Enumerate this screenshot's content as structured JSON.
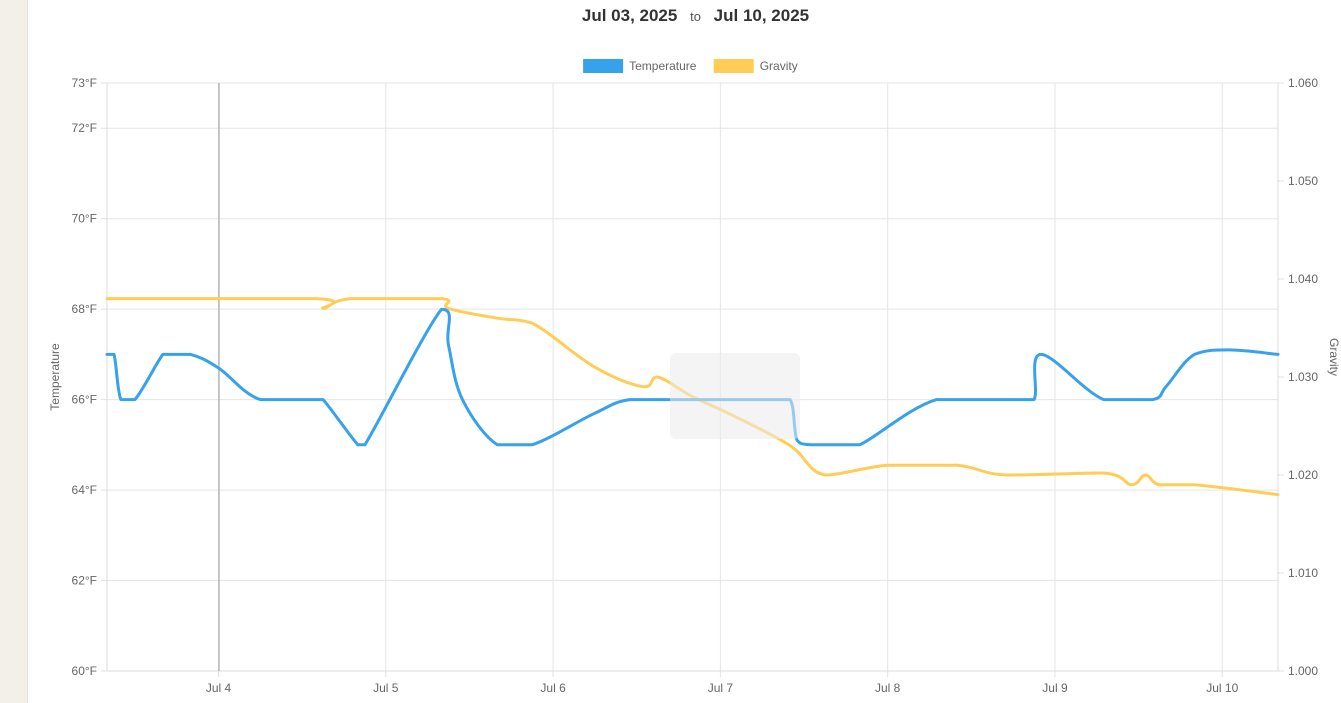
{
  "header": {
    "start_date": "Jul 03, 2025",
    "separator": "to",
    "end_date": "Jul 10, 2025"
  },
  "chart_data": {
    "type": "line",
    "legend": {
      "position": "top",
      "items": [
        {
          "name": "Temperature",
          "color": "#36a2eb"
        },
        {
          "name": "Gravity",
          "color": "#ffcd56"
        }
      ]
    },
    "grid": true,
    "x_axis": {
      "type": "date",
      "start": "2025-07-03 08:00",
      "end": "2025-07-10 08:00",
      "ticks": [
        "Jul 4",
        "Jul 5",
        "Jul 6",
        "Jul 7",
        "Jul 8",
        "Jul 9",
        "Jul 10"
      ]
    },
    "y_left": {
      "label": "Temperature",
      "unit": "°F",
      "range": [
        60,
        73
      ],
      "ticks": [
        "60°F",
        "62°F",
        "64°F",
        "66°F",
        "68°F",
        "70°F",
        "72°F",
        "73°F"
      ]
    },
    "y_right": {
      "label": "Gravity",
      "range": [
        1.0,
        1.06
      ],
      "ticks": [
        "1.000",
        "1.010",
        "1.020",
        "1.030",
        "1.040",
        "1.050",
        "1.060"
      ]
    },
    "series": [
      {
        "name": "Temperature",
        "axis": "left",
        "color": "#36a2eb",
        "points": [
          [
            "2025-07-03 08:00",
            67
          ],
          [
            "2025-07-03 09:00",
            67
          ],
          [
            "2025-07-03 10:00",
            66
          ],
          [
            "2025-07-03 12:00",
            66
          ],
          [
            "2025-07-03 16:00",
            67
          ],
          [
            "2025-07-03 17:00",
            67
          ],
          [
            "2025-07-03 20:00",
            67
          ],
          [
            "2025-07-04 00:00",
            66.7
          ],
          [
            "2025-07-04 06:00",
            66
          ],
          [
            "2025-07-04 14:00",
            66
          ],
          [
            "2025-07-04 15:00",
            66
          ],
          [
            "2025-07-04 20:00",
            65
          ],
          [
            "2025-07-04 21:00",
            65
          ],
          [
            "2025-07-05 08:00",
            68
          ],
          [
            "2025-07-05 09:00",
            67.2
          ],
          [
            "2025-07-05 11:00",
            66
          ],
          [
            "2025-07-05 16:00",
            65
          ],
          [
            "2025-07-05 21:00",
            65
          ],
          [
            "2025-07-06 06:00",
            65.7
          ],
          [
            "2025-07-06 11:00",
            66
          ],
          [
            "2025-07-06 19:00",
            66
          ],
          [
            "2025-07-07 07:00",
            66
          ],
          [
            "2025-07-07 10:00",
            66
          ],
          [
            "2025-07-07 11:00",
            65.1
          ],
          [
            "2025-07-07 13:00",
            65
          ],
          [
            "2025-07-07 17:00",
            65
          ],
          [
            "2025-07-07 20:00",
            65
          ],
          [
            "2025-07-08 07:00",
            66
          ],
          [
            "2025-07-08 18:00",
            66
          ],
          [
            "2025-07-08 21:00",
            66
          ],
          [
            "2025-07-08 22:00",
            67
          ],
          [
            "2025-07-09 07:00",
            66
          ],
          [
            "2025-07-09 14:00",
            66
          ],
          [
            "2025-07-09 16:00",
            66.3
          ],
          [
            "2025-07-09 20:00",
            67
          ],
          [
            "2025-07-10 01:00",
            67.1
          ],
          [
            "2025-07-10 08:00",
            67
          ]
        ]
      },
      {
        "name": "Gravity",
        "axis": "right",
        "color": "#ffcd56",
        "points": [
          [
            "2025-07-03 08:00",
            1.038
          ],
          [
            "2025-07-04 14:00",
            1.038
          ],
          [
            "2025-07-04 15:00",
            1.037
          ],
          [
            "2025-07-04 19:00",
            1.038
          ],
          [
            "2025-07-05 08:00",
            1.038
          ],
          [
            "2025-07-05 09:00",
            1.037
          ],
          [
            "2025-07-05 16:00",
            1.036
          ],
          [
            "2025-07-05 21:00",
            1.0355
          ],
          [
            "2025-07-06 06:00",
            1.031
          ],
          [
            "2025-07-06 13:00",
            1.029
          ],
          [
            "2025-07-06 15:00",
            1.03
          ],
          [
            "2025-07-06 20:00",
            1.028
          ],
          [
            "2025-07-07 02:00",
            1.026
          ],
          [
            "2025-07-07 10:00",
            1.023
          ],
          [
            "2025-07-07 15:00",
            1.02
          ],
          [
            "2025-07-08 00:00",
            1.021
          ],
          [
            "2025-07-08 10:00",
            1.021
          ],
          [
            "2025-07-08 17:00",
            1.02
          ],
          [
            "2025-07-09 07:00",
            1.0202
          ],
          [
            "2025-07-09 11:00",
            1.019
          ],
          [
            "2025-07-09 13:00",
            1.02
          ],
          [
            "2025-07-09 15:00",
            1.019
          ],
          [
            "2025-07-09 20:00",
            1.019
          ],
          [
            "2025-07-10 08:00",
            1.018
          ]
        ]
      }
    ]
  }
}
